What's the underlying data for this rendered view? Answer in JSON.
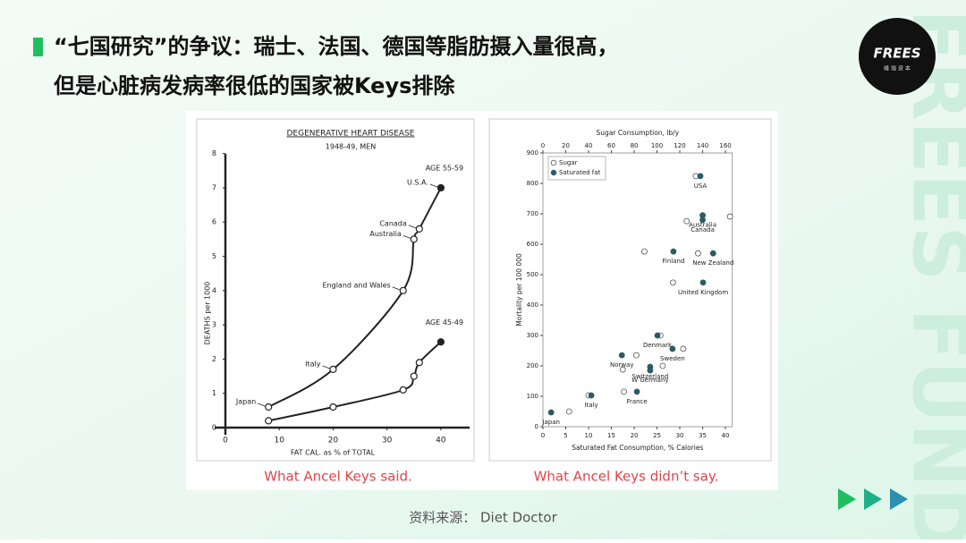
{
  "header": {
    "title_lines": [
      "“七国研究”的争议：瑞士、法国、德国等脂肪摄入量很高，",
      "但是心脏病发病率很低的国家被Keys排除"
    ]
  },
  "logo": {
    "name": "FREES",
    "subtitle": "峰 瑞 资 本"
  },
  "watermark": "FREES FUND",
  "chart_data": [
    {
      "type": "line",
      "title": "DEGENERATIVE HEART DISEASE",
      "subtitle": "1948-49, MEN",
      "x_label": "FAT CAL. as % of TOTAL",
      "y_label": "DEATHS per 1000",
      "categories": [
        "Japan",
        "Italy",
        "England and Wales",
        "Australia",
        "Canada",
        "U.S.A."
      ],
      "x": [
        8,
        20,
        33,
        35,
        36,
        40
      ],
      "series": [
        {
          "name": "AGE 55-59",
          "color": "#222222",
          "values": [
            0.6,
            1.7,
            4.0,
            5.5,
            5.8,
            7.0
          ]
        },
        {
          "name": "AGE 45-49",
          "color": "#222222",
          "values": [
            0.2,
            0.6,
            1.1,
            1.5,
            1.9,
            2.5
          ]
        }
      ],
      "xlim": [
        0,
        45
      ],
      "xticks": [
        0,
        10,
        20,
        30,
        40
      ],
      "ylim": [
        0,
        8.2
      ],
      "yticks": [
        0,
        1,
        2,
        3,
        4,
        5,
        6,
        7,
        8
      ],
      "caption": "What Ancel Keys said."
    },
    {
      "type": "scatter",
      "x_label": "Saturated Fat Consumption, % Calories",
      "x2_label": "Sugar Consumption, lb/y",
      "y_label": "Mortality per 100 000",
      "categories": [
        "USA",
        "Australia",
        "Canada",
        "Finland",
        "New Zealand",
        "United Kingdom",
        "Denmark",
        "Sweden",
        "Norway",
        "Switzerland",
        "W Germany",
        "France",
        "Italy",
        "Japan"
      ],
      "series": [
        {
          "name": "Sugar",
          "color": "#ffffff",
          "axis": "x2",
          "x": [
            134,
            164,
            126,
            89,
            136,
            114,
            103,
            123,
            82,
            105,
            70,
            71,
            40,
            23
          ],
          "values": [
            824,
            691,
            676,
            576,
            570,
            474,
            300,
            256,
            235,
            200,
            188,
            115,
            103,
            50
          ]
        },
        {
          "name": "Saturated fat",
          "color": "#2b5c63",
          "x": [
            34.5,
            35,
            35,
            28.6,
            37.3,
            35.1,
            25.1,
            28.4,
            17.3,
            23.5,
            23.5,
            20.6,
            10.6,
            1.8
          ],
          "values": [
            824,
            695,
            680,
            576,
            570,
            474,
            300,
            256,
            235,
            197,
            185,
            115,
            103,
            47
          ]
        }
      ],
      "xlim": [
        0,
        41.5
      ],
      "xticks": [
        0,
        5,
        10,
        15,
        20,
        25,
        30,
        35,
        40
      ],
      "x2lim": [
        0,
        166
      ],
      "x2ticks": [
        0,
        20,
        40,
        60,
        80,
        100,
        120,
        140,
        160
      ],
      "ylim": [
        0,
        900
      ],
      "yticks": [
        0,
        100,
        200,
        300,
        400,
        500,
        600,
        700,
        800,
        900
      ],
      "legend": "upper left",
      "caption": "What Ancel Keys didn’t say."
    }
  ],
  "source": "资料来源： Diet Doctor"
}
